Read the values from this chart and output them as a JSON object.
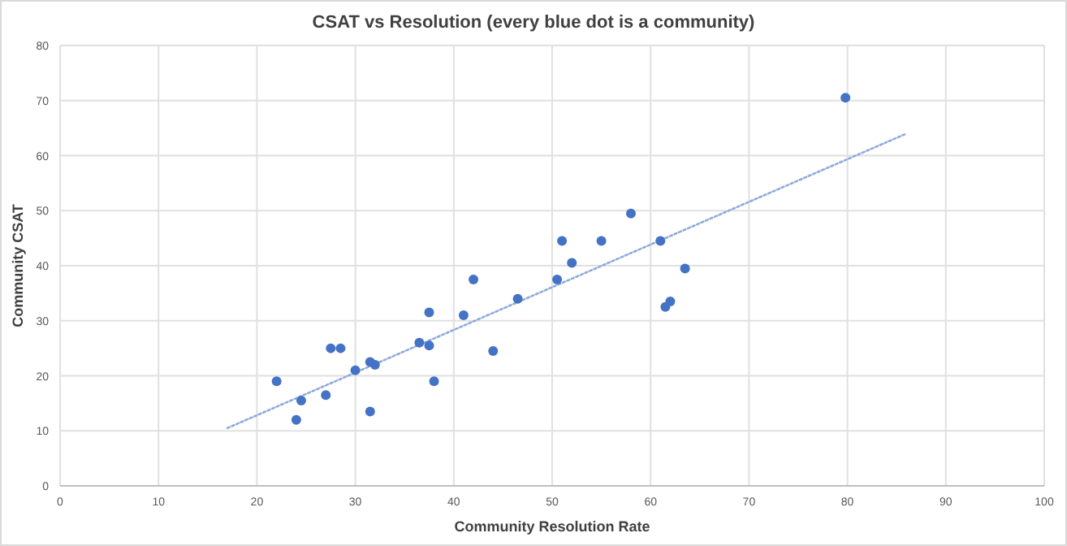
{
  "chart_data": {
    "type": "scatter",
    "title": "CSAT vs Resolution (every blue dot is a community)",
    "xlabel": "Community Resolution Rate",
    "ylabel": "Community CSAT",
    "xlim": [
      0,
      100
    ],
    "xticks": [
      0,
      10,
      20,
      30,
      40,
      50,
      60,
      70,
      80,
      90,
      100
    ],
    "ylim": [
      0,
      80
    ],
    "yticks": [
      0,
      10,
      20,
      30,
      40,
      50,
      60,
      70,
      80
    ],
    "grid": true,
    "marker": "circle",
    "series": [
      {
        "color": "#4472c4",
        "x": [
          22,
          24,
          24.5,
          27,
          27.5,
          28.5,
          30,
          31.5,
          31.5,
          32,
          36.5,
          37.5,
          37.5,
          38,
          41,
          42,
          44,
          46.5,
          50.5,
          51,
          52,
          55,
          58,
          61,
          61.5,
          62,
          63.5,
          79.8
        ],
        "values": [
          19,
          12,
          15.5,
          16.5,
          25,
          25,
          21,
          22.5,
          13.5,
          22,
          26,
          25.5,
          31.5,
          19,
          31,
          37.5,
          24.5,
          34,
          37.5,
          44.5,
          40.5,
          44.5,
          49.5,
          44.5,
          32.5,
          33.5,
          39.5,
          70.5
        ]
      },
      {
        "type": "line",
        "color": "#8faadc",
        "line_style": "dotted",
        "marker": "none",
        "x": [
          17,
          86
        ],
        "values": [
          10.5,
          64
        ]
      }
    ]
  }
}
